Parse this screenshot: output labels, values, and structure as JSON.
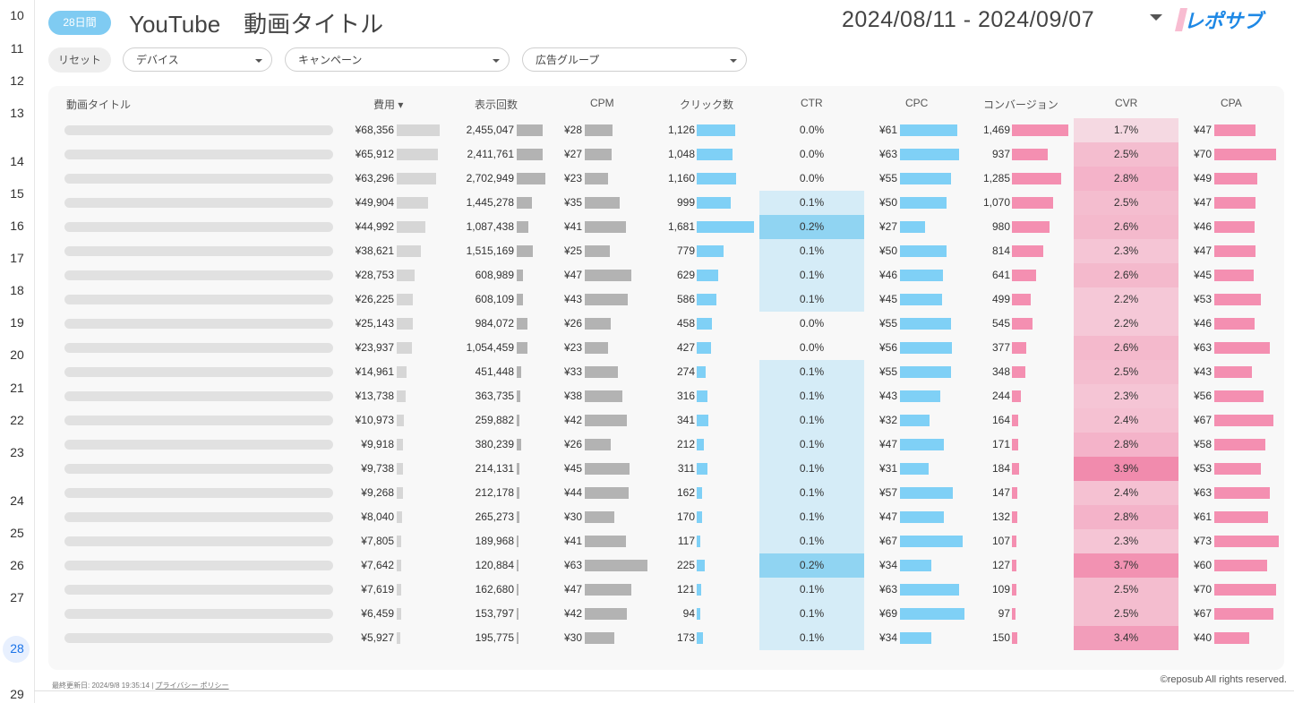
{
  "gutter": {
    "row_numbers": [
      "10",
      "11",
      "12",
      "13",
      "14",
      "15",
      "16",
      "17",
      "18",
      "19",
      "20",
      "21",
      "22",
      "23",
      "24",
      "25",
      "26",
      "27",
      "28",
      "29"
    ],
    "active": "28"
  },
  "header": {
    "badge": "28日間",
    "title": "YouTube　動画タイトル",
    "date_range": "2024/08/11 - 2024/09/07",
    "logo_text": "レポサブ"
  },
  "filters": {
    "reset": "リセット",
    "device": "デバイス",
    "campaign": "キャンペーン",
    "ad_group": "広告グループ"
  },
  "table": {
    "columns": {
      "title": "動画タイトル",
      "cost": "費用 ▾",
      "impressions": "表示回数",
      "cpm": "CPM",
      "clicks": "クリック数",
      "ctr": "CTR",
      "cpc": "CPC",
      "conversions": "コンバージョン",
      "cvr": "CVR",
      "cpa": "CPA"
    },
    "rows": [
      {
        "cost": "¥68,356",
        "cost_v": 68356,
        "imp": "2,455,047",
        "imp_v": 2455047,
        "cpm": "¥28",
        "cpm_v": 28,
        "clicks": "1,126",
        "clicks_v": 1126,
        "ctr": "0.0%",
        "ctr_v": 0.0,
        "cpc": "¥61",
        "cpc_v": 61,
        "conv": "1,469",
        "conv_v": 1469,
        "cvr": "1.7%",
        "cvr_v": 1.7,
        "cpa": "¥47",
        "cpa_v": 47
      },
      {
        "cost": "¥65,912",
        "cost_v": 65912,
        "imp": "2,411,761",
        "imp_v": 2411761,
        "cpm": "¥27",
        "cpm_v": 27,
        "clicks": "1,048",
        "clicks_v": 1048,
        "ctr": "0.0%",
        "ctr_v": 0.0,
        "cpc": "¥63",
        "cpc_v": 63,
        "conv": "937",
        "conv_v": 937,
        "cvr": "2.5%",
        "cvr_v": 2.5,
        "cpa": "¥70",
        "cpa_v": 70
      },
      {
        "cost": "¥63,296",
        "cost_v": 63296,
        "imp": "2,702,949",
        "imp_v": 2702949,
        "cpm": "¥23",
        "cpm_v": 23,
        "clicks": "1,160",
        "clicks_v": 1160,
        "ctr": "0.0%",
        "ctr_v": 0.0,
        "cpc": "¥55",
        "cpc_v": 55,
        "conv": "1,285",
        "conv_v": 1285,
        "cvr": "2.8%",
        "cvr_v": 2.8,
        "cpa": "¥49",
        "cpa_v": 49
      },
      {
        "cost": "¥49,904",
        "cost_v": 49904,
        "imp": "1,445,278",
        "imp_v": 1445278,
        "cpm": "¥35",
        "cpm_v": 35,
        "clicks": "999",
        "clicks_v": 999,
        "ctr": "0.1%",
        "ctr_v": 0.1,
        "cpc": "¥50",
        "cpc_v": 50,
        "conv": "1,070",
        "conv_v": 1070,
        "cvr": "2.5%",
        "cvr_v": 2.5,
        "cpa": "¥47",
        "cpa_v": 47
      },
      {
        "cost": "¥44,992",
        "cost_v": 44992,
        "imp": "1,087,438",
        "imp_v": 1087438,
        "cpm": "¥41",
        "cpm_v": 41,
        "clicks": "1,681",
        "clicks_v": 1681,
        "ctr": "0.2%",
        "ctr_v": 0.2,
        "cpc": "¥27",
        "cpc_v": 27,
        "conv": "980",
        "conv_v": 980,
        "cvr": "2.6%",
        "cvr_v": 2.6,
        "cpa": "¥46",
        "cpa_v": 46
      },
      {
        "cost": "¥38,621",
        "cost_v": 38621,
        "imp": "1,515,169",
        "imp_v": 1515169,
        "cpm": "¥25",
        "cpm_v": 25,
        "clicks": "779",
        "clicks_v": 779,
        "ctr": "0.1%",
        "ctr_v": 0.1,
        "cpc": "¥50",
        "cpc_v": 50,
        "conv": "814",
        "conv_v": 814,
        "cvr": "2.3%",
        "cvr_v": 2.3,
        "cpa": "¥47",
        "cpa_v": 47
      },
      {
        "cost": "¥28,753",
        "cost_v": 28753,
        "imp": "608,989",
        "imp_v": 608989,
        "cpm": "¥47",
        "cpm_v": 47,
        "clicks": "629",
        "clicks_v": 629,
        "ctr": "0.1%",
        "ctr_v": 0.1,
        "cpc": "¥46",
        "cpc_v": 46,
        "conv": "641",
        "conv_v": 641,
        "cvr": "2.6%",
        "cvr_v": 2.6,
        "cpa": "¥45",
        "cpa_v": 45
      },
      {
        "cost": "¥26,225",
        "cost_v": 26225,
        "imp": "608,109",
        "imp_v": 608109,
        "cpm": "¥43",
        "cpm_v": 43,
        "clicks": "586",
        "clicks_v": 586,
        "ctr": "0.1%",
        "ctr_v": 0.1,
        "cpc": "¥45",
        "cpc_v": 45,
        "conv": "499",
        "conv_v": 499,
        "cvr": "2.2%",
        "cvr_v": 2.2,
        "cpa": "¥53",
        "cpa_v": 53
      },
      {
        "cost": "¥25,143",
        "cost_v": 25143,
        "imp": "984,072",
        "imp_v": 984072,
        "cpm": "¥26",
        "cpm_v": 26,
        "clicks": "458",
        "clicks_v": 458,
        "ctr": "0.0%",
        "ctr_v": 0.0,
        "cpc": "¥55",
        "cpc_v": 55,
        "conv": "545",
        "conv_v": 545,
        "cvr": "2.2%",
        "cvr_v": 2.2,
        "cpa": "¥46",
        "cpa_v": 46
      },
      {
        "cost": "¥23,937",
        "cost_v": 23937,
        "imp": "1,054,459",
        "imp_v": 1054459,
        "cpm": "¥23",
        "cpm_v": 23,
        "clicks": "427",
        "clicks_v": 427,
        "ctr": "0.0%",
        "ctr_v": 0.0,
        "cpc": "¥56",
        "cpc_v": 56,
        "conv": "377",
        "conv_v": 377,
        "cvr": "2.6%",
        "cvr_v": 2.6,
        "cpa": "¥63",
        "cpa_v": 63
      },
      {
        "cost": "¥14,961",
        "cost_v": 14961,
        "imp": "451,448",
        "imp_v": 451448,
        "cpm": "¥33",
        "cpm_v": 33,
        "clicks": "274",
        "clicks_v": 274,
        "ctr": "0.1%",
        "ctr_v": 0.1,
        "cpc": "¥55",
        "cpc_v": 55,
        "conv": "348",
        "conv_v": 348,
        "cvr": "2.5%",
        "cvr_v": 2.5,
        "cpa": "¥43",
        "cpa_v": 43
      },
      {
        "cost": "¥13,738",
        "cost_v": 13738,
        "imp": "363,735",
        "imp_v": 363735,
        "cpm": "¥38",
        "cpm_v": 38,
        "clicks": "316",
        "clicks_v": 316,
        "ctr": "0.1%",
        "ctr_v": 0.1,
        "cpc": "¥43",
        "cpc_v": 43,
        "conv": "244",
        "conv_v": 244,
        "cvr": "2.3%",
        "cvr_v": 2.3,
        "cpa": "¥56",
        "cpa_v": 56
      },
      {
        "cost": "¥10,973",
        "cost_v": 10973,
        "imp": "259,882",
        "imp_v": 259882,
        "cpm": "¥42",
        "cpm_v": 42,
        "clicks": "341",
        "clicks_v": 341,
        "ctr": "0.1%",
        "ctr_v": 0.1,
        "cpc": "¥32",
        "cpc_v": 32,
        "conv": "164",
        "conv_v": 164,
        "cvr": "2.4%",
        "cvr_v": 2.4,
        "cpa": "¥67",
        "cpa_v": 67
      },
      {
        "cost": "¥9,918",
        "cost_v": 9918,
        "imp": "380,239",
        "imp_v": 380239,
        "cpm": "¥26",
        "cpm_v": 26,
        "clicks": "212",
        "clicks_v": 212,
        "ctr": "0.1%",
        "ctr_v": 0.1,
        "cpc": "¥47",
        "cpc_v": 47,
        "conv": "171",
        "conv_v": 171,
        "cvr": "2.8%",
        "cvr_v": 2.8,
        "cpa": "¥58",
        "cpa_v": 58
      },
      {
        "cost": "¥9,738",
        "cost_v": 9738,
        "imp": "214,131",
        "imp_v": 214131,
        "cpm": "¥45",
        "cpm_v": 45,
        "clicks": "311",
        "clicks_v": 311,
        "ctr": "0.1%",
        "ctr_v": 0.1,
        "cpc": "¥31",
        "cpc_v": 31,
        "conv": "184",
        "conv_v": 184,
        "cvr": "3.9%",
        "cvr_v": 3.9,
        "cpa": "¥53",
        "cpa_v": 53
      },
      {
        "cost": "¥9,268",
        "cost_v": 9268,
        "imp": "212,178",
        "imp_v": 212178,
        "cpm": "¥44",
        "cpm_v": 44,
        "clicks": "162",
        "clicks_v": 162,
        "ctr": "0.1%",
        "ctr_v": 0.1,
        "cpc": "¥57",
        "cpc_v": 57,
        "conv": "147",
        "conv_v": 147,
        "cvr": "2.4%",
        "cvr_v": 2.4,
        "cpa": "¥63",
        "cpa_v": 63
      },
      {
        "cost": "¥8,040",
        "cost_v": 8040,
        "imp": "265,273",
        "imp_v": 265273,
        "cpm": "¥30",
        "cpm_v": 30,
        "clicks": "170",
        "clicks_v": 170,
        "ctr": "0.1%",
        "ctr_v": 0.1,
        "cpc": "¥47",
        "cpc_v": 47,
        "conv": "132",
        "conv_v": 132,
        "cvr": "2.8%",
        "cvr_v": 2.8,
        "cpa": "¥61",
        "cpa_v": 61
      },
      {
        "cost": "¥7,805",
        "cost_v": 7805,
        "imp": "189,968",
        "imp_v": 189968,
        "cpm": "¥41",
        "cpm_v": 41,
        "clicks": "117",
        "clicks_v": 117,
        "ctr": "0.1%",
        "ctr_v": 0.1,
        "cpc": "¥67",
        "cpc_v": 67,
        "conv": "107",
        "conv_v": 107,
        "cvr": "2.3%",
        "cvr_v": 2.3,
        "cpa": "¥73",
        "cpa_v": 73
      },
      {
        "cost": "¥7,642",
        "cost_v": 7642,
        "imp": "120,884",
        "imp_v": 120884,
        "cpm": "¥63",
        "cpm_v": 63,
        "clicks": "225",
        "clicks_v": 225,
        "ctr": "0.2%",
        "ctr_v": 0.2,
        "cpc": "¥34",
        "cpc_v": 34,
        "conv": "127",
        "conv_v": 127,
        "cvr": "3.7%",
        "cvr_v": 3.7,
        "cpa": "¥60",
        "cpa_v": 60
      },
      {
        "cost": "¥7,619",
        "cost_v": 7619,
        "imp": "162,680",
        "imp_v": 162680,
        "cpm": "¥47",
        "cpm_v": 47,
        "clicks": "121",
        "clicks_v": 121,
        "ctr": "0.1%",
        "ctr_v": 0.1,
        "cpc": "¥63",
        "cpc_v": 63,
        "conv": "109",
        "conv_v": 109,
        "cvr": "2.5%",
        "cvr_v": 2.5,
        "cpa": "¥70",
        "cpa_v": 70
      },
      {
        "cost": "¥6,459",
        "cost_v": 6459,
        "imp": "153,797",
        "imp_v": 153797,
        "cpm": "¥42",
        "cpm_v": 42,
        "clicks": "94",
        "clicks_v": 94,
        "ctr": "0.1%",
        "ctr_v": 0.1,
        "cpc": "¥69",
        "cpc_v": 69,
        "conv": "97",
        "conv_v": 97,
        "cvr": "2.5%",
        "cvr_v": 2.5,
        "cpa": "¥67",
        "cpa_v": 67
      },
      {
        "cost": "¥5,927",
        "cost_v": 5927,
        "imp": "195,775",
        "imp_v": 195775,
        "cpm": "¥30",
        "cpm_v": 30,
        "clicks": "173",
        "clicks_v": 173,
        "ctr": "0.1%",
        "ctr_v": 0.1,
        "cpc": "¥34",
        "cpc_v": 34,
        "conv": "150",
        "conv_v": 150,
        "cvr": "3.4%",
        "cvr_v": 3.4,
        "cpa": "¥40",
        "cpa_v": 40
      }
    ]
  },
  "footer": {
    "updated": "最終更新日: 2024/9/8 19:35:14",
    "separator": "|",
    "privacy": "プライバシー ポリシー",
    "copyright": "©reposub All rights reserved."
  },
  "colors": {
    "accent": "#7fcbf2",
    "gray_bar": "#b3b3b3",
    "light_gray_bar": "#d6d6d6",
    "blue_bar": "#7fd0f6",
    "pink_bar": "#f48fb1",
    "logo_blue": "#1e88e5",
    "logo_pink": "#ec407a"
  }
}
